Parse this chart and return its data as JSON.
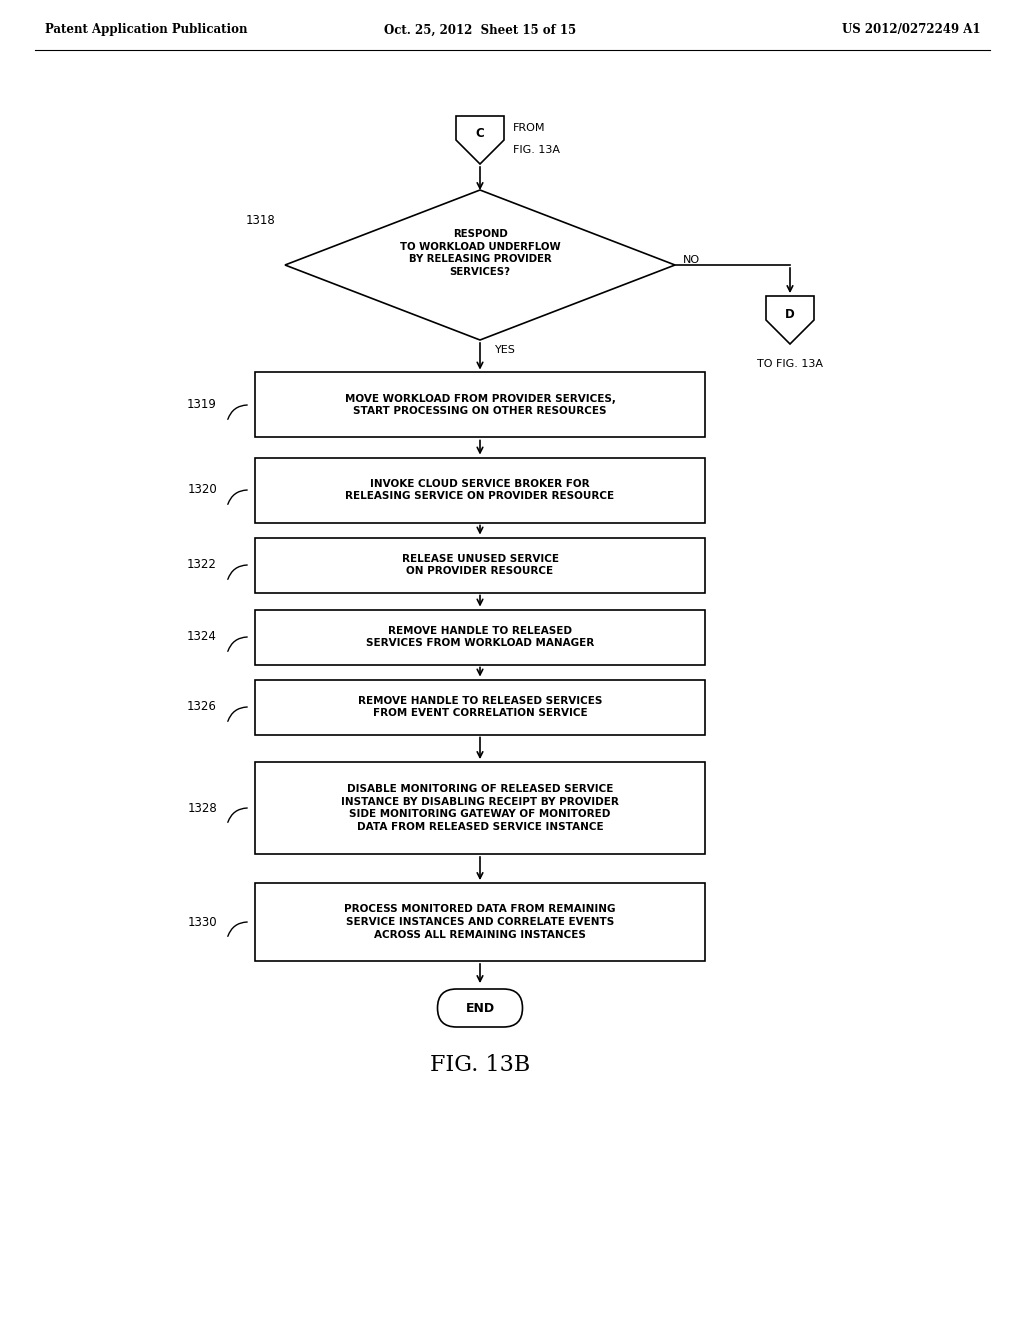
{
  "bg_color": "#ffffff",
  "header_left": "Patent Application Publication",
  "header_mid": "Oct. 25, 2012  Sheet 15 of 15",
  "header_right": "US 2012/0272249 A1",
  "fig_caption": "FIG. 13B",
  "connector_C_label": "C",
  "connector_D_label": "D",
  "diamond_label": "1318",
  "diamond_text": "RESPOND\nTO WORKLOAD UNDERFLOW\nBY RELEASING PROVIDER\nSERVICES?",
  "diamond_yes": "YES",
  "diamond_no": "NO",
  "boxes": [
    {
      "label": "1319",
      "text": "MOVE WORKLOAD FROM PROVIDER SERVICES,\nSTART PROCESSING ON OTHER RESOURCES"
    },
    {
      "label": "1320",
      "text": "INVOKE CLOUD SERVICE BROKER FOR\nRELEASING SERVICE ON PROVIDER RESOURCE"
    },
    {
      "label": "1322",
      "text": "RELEASE UNUSED SERVICE\nON PROVIDER RESOURCE"
    },
    {
      "label": "1324",
      "text": "REMOVE HANDLE TO RELEASED\nSERVICES FROM WORKLOAD MANAGER"
    },
    {
      "label": "1326",
      "text": "REMOVE HANDLE TO RELEASED SERVICES\nFROM EVENT CORRELATION SERVICE"
    },
    {
      "label": "1328",
      "text": "DISABLE MONITORING OF RELEASED SERVICE\nINSTANCE BY DISABLING RECEIPT BY PROVIDER\nSIDE MONITORING GATEWAY OF MONITORED\nDATA FROM RELEASED SERVICE INSTANCE"
    },
    {
      "label": "1330",
      "text": "PROCESS MONITORED DATA FROM REMAINING\nSERVICE INSTANCES AND CORRELATE EVENTS\nACROSS ALL REMAINING INSTANCES"
    }
  ],
  "end_label": "END"
}
